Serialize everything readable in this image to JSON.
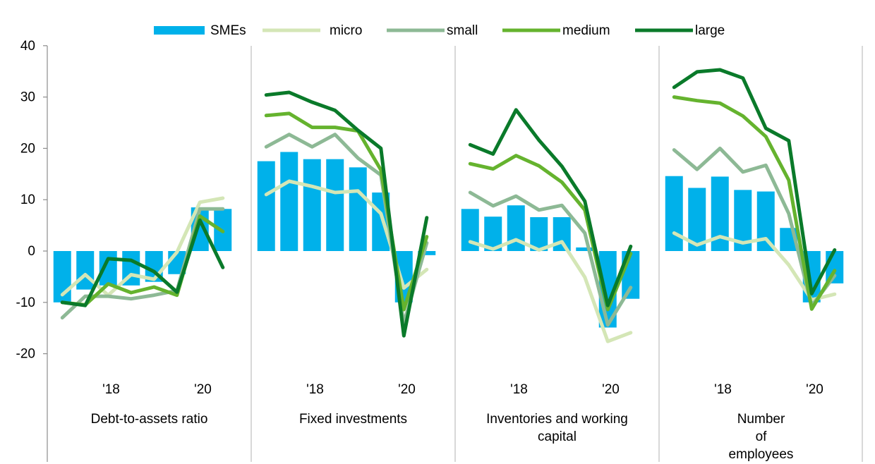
{
  "chart_data": {
    "type": "bar",
    "title": "",
    "xlabel": "",
    "ylabel": "",
    "ylim": [
      -20,
      40
    ],
    "yticks": [
      -20,
      -10,
      0,
      10,
      20,
      30,
      40
    ],
    "grid": false,
    "legend_position": "top",
    "x": [
      "2017",
      "2017",
      "2018",
      "2018",
      "2019",
      "2019",
      "2020",
      "2020"
    ],
    "year_ticks": [
      "'18",
      "'20"
    ],
    "colors": {
      "SMEs": "#00b1ea",
      "micro": "#d4e6b6",
      "small": "#8db995",
      "medium": "#65b32e",
      "large": "#0a7a2a"
    },
    "legend": [
      {
        "name": "SMEs",
        "style": "bar"
      },
      {
        "name": "micro",
        "style": "line"
      },
      {
        "name": "small",
        "style": "line"
      },
      {
        "name": "medium",
        "style": "line"
      },
      {
        "name": "large",
        "style": "line"
      }
    ],
    "panels": [
      {
        "label": [
          "Debt-to-assets ratio"
        ],
        "series": {
          "SMEs": [
            -10,
            -7.5,
            -6.7,
            -6.7,
            -6,
            -4.5,
            8.5,
            8.2
          ],
          "micro": [
            -8.5,
            -4.6,
            -8.6,
            -4.6,
            -5.5,
            -0.2,
            9.5,
            10.3
          ],
          "small": [
            -13,
            -8.8,
            -8.8,
            -9.3,
            -8.6,
            -7.7,
            8.2,
            8.2
          ],
          "medium": [
            -10,
            -10.5,
            -6.4,
            -8.1,
            -7.0,
            -8.6,
            6.8,
            3.8
          ],
          "large": [
            -10,
            -10.6,
            -1.5,
            -1.8,
            -4.0,
            -8.0,
            6.0,
            -3.2
          ]
        }
      },
      {
        "label": [
          "Fixed investments"
        ],
        "series": {
          "SMEs": [
            17.5,
            19.3,
            17.9,
            17.9,
            16.3,
            11.4,
            -10,
            -0.8
          ],
          "micro": [
            11,
            13.6,
            12.6,
            11.4,
            11.7,
            7.3,
            -7.2,
            -3.6
          ],
          "small": [
            20.3,
            22.7,
            20.3,
            22.7,
            18.1,
            14.8,
            -14.1,
            1.6
          ],
          "medium": [
            26.4,
            26.8,
            24.1,
            24.1,
            23.4,
            15.8,
            -11.4,
            2.8
          ],
          "large": [
            30.4,
            30.9,
            29.0,
            27.4,
            23.5,
            20.0,
            -16.5,
            6.5
          ]
        }
      },
      {
        "label": [
          "Inventories and working",
          "capital"
        ],
        "series": {
          "SMEs": [
            8.2,
            6.7,
            8.9,
            6.6,
            6.6,
            0.7,
            -14.9,
            -9.3
          ],
          "micro": [
            1.8,
            0.4,
            2.2,
            0.2,
            1.8,
            -5.1,
            -17.6,
            -15.9
          ],
          "small": [
            11.4,
            8.8,
            10.7,
            8.0,
            8.9,
            3.5,
            -14.4,
            -7.1
          ],
          "medium": [
            17.0,
            16.0,
            18.6,
            16.6,
            13.4,
            8.0,
            -11.4,
            -0.5
          ],
          "large": [
            20.7,
            18.9,
            27.5,
            21.6,
            16.5,
            9.7,
            -10.6,
            0.9
          ]
        }
      },
      {
        "label": [
          "Number",
          "of",
          "employees"
        ],
        "series": {
          "SMEs": [
            14.6,
            12.3,
            14.5,
            11.9,
            11.6,
            4.5,
            -10,
            -6.3
          ],
          "micro": [
            3.5,
            1.2,
            2.8,
            1.6,
            2.4,
            -2.7,
            -9.5,
            -8.4
          ],
          "small": [
            19.7,
            15.9,
            20.0,
            15.4,
            16.7,
            7.3,
            -10.7,
            -4.8
          ],
          "medium": [
            30.0,
            29.3,
            28.8,
            26.3,
            22.3,
            13.8,
            -11.3,
            -3.8
          ],
          "large": [
            31.9,
            34.9,
            35.3,
            33.7,
            23.9,
            21.5,
            -8.3,
            0.2
          ]
        }
      }
    ]
  }
}
